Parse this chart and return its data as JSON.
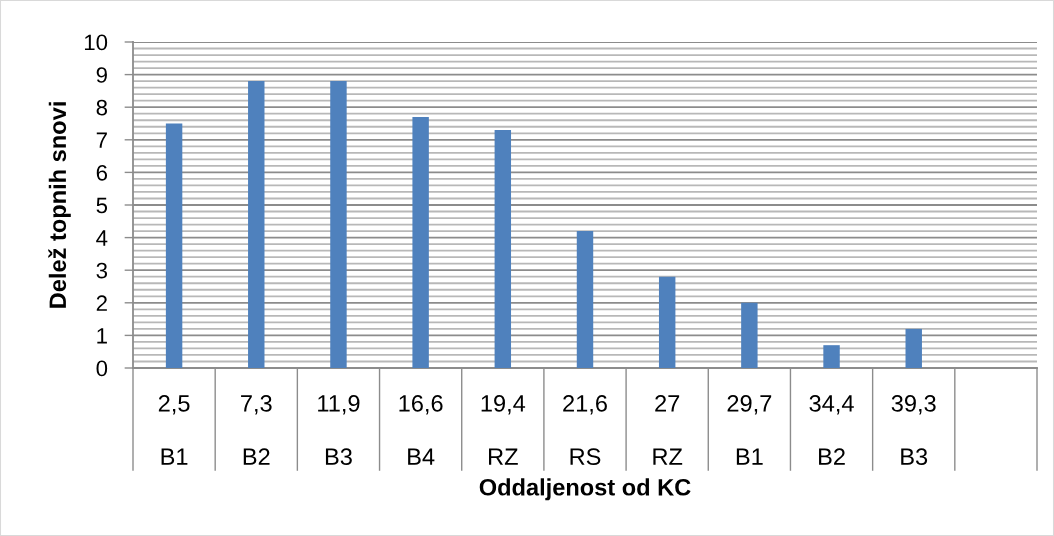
{
  "chart_data": {
    "type": "bar",
    "xlabel": "Oddaljenost od KC",
    "ylabel": "Delež topnih snovi",
    "categories": [
      "2,5\nB1",
      "7,3\nB2",
      "11,9\nB3",
      "16,6\nB4",
      "19,4\nRZ",
      "21,6\nRS",
      "27\nRZ",
      "29,7\nB1",
      "34,4\nB2",
      "39,3\nB3",
      null
    ],
    "values": [
      7.5,
      8.8,
      8.8,
      7.7,
      7.3,
      4.2,
      2.8,
      2.0,
      0.7,
      1.2,
      null
    ],
    "color": "#4f81bd",
    "ylim": [
      0,
      10
    ],
    "yticks": [
      0,
      {
        "value": 0.2,
        "label": null
      },
      {
        "value": 0.4,
        "label": null
      },
      {
        "value": 0.6,
        "label": null
      },
      {
        "value": 0.8,
        "label": null
      },
      1,
      {
        "value": 1.2,
        "label": null
      },
      {
        "value": 1.4,
        "label": null
      },
      {
        "value": 1.6,
        "label": null
      },
      {
        "value": 1.8,
        "label": null
      },
      2,
      {
        "value": 2.2,
        "label": null
      },
      {
        "value": 2.4,
        "label": null
      },
      {
        "value": 2.6,
        "label": null
      },
      {
        "value": 2.8,
        "label": null
      },
      3,
      {
        "value": 3.2,
        "label": null
      },
      {
        "value": 3.4,
        "label": null
      },
      {
        "value": 3.6,
        "label": null
      },
      {
        "value": 3.8,
        "label": null
      },
      4,
      {
        "value": 4.2,
        "label": null
      },
      {
        "value": 4.4,
        "label": null
      },
      {
        "value": 4.6,
        "label": null
      },
      {
        "value": 4.8,
        "label": null
      },
      5,
      {
        "value": 5.2,
        "label": null
      },
      {
        "value": 5.4,
        "label": null
      },
      {
        "value": 5.6,
        "label": null
      },
      {
        "value": 5.8,
        "label": null
      },
      6,
      {
        "value": 6.2,
        "label": null
      },
      {
        "value": 6.4,
        "label": null
      },
      {
        "value": 6.6,
        "label": null
      },
      {
        "value": 6.8,
        "label": null
      },
      7,
      {
        "value": 7.2,
        "label": null
      },
      {
        "value": 7.4,
        "label": null
      },
      {
        "value": 7.6,
        "label": null
      },
      {
        "value": 7.8,
        "label": null
      },
      8,
      {
        "value": 8.2,
        "label": null
      },
      {
        "value": 8.4,
        "label": null
      },
      {
        "value": 8.6,
        "label": null
      },
      {
        "value": 8.8,
        "label": null
      },
      9,
      {
        "value": 9.2,
        "label": null
      },
      {
        "value": 9.4,
        "label": null
      },
      {
        "value": 9.6,
        "label": null
      },
      {
        "value": 9.8,
        "label": null
      },
      10
    ],
    "grid": "y"
  }
}
